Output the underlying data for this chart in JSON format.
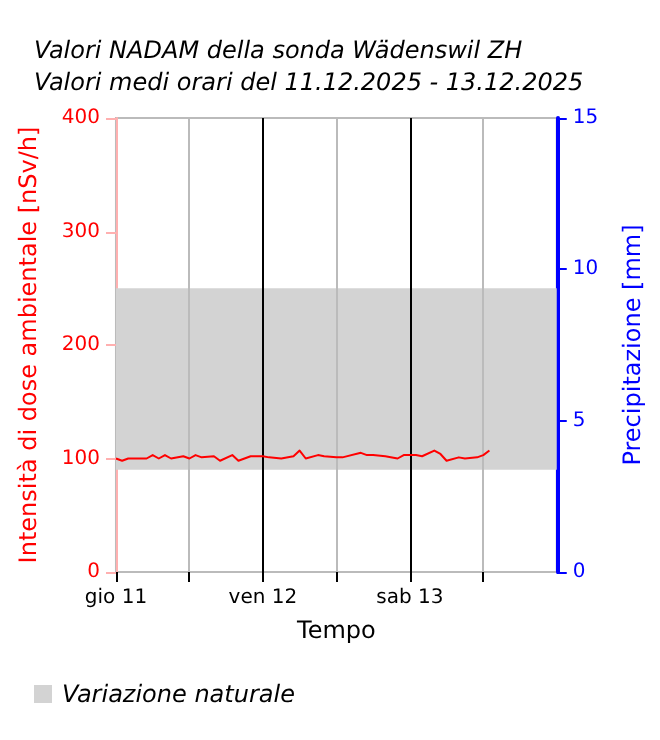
{
  "chart_data": {
    "type": "line",
    "title": "Valori NADAM della sonda Wädenswil ZH\nValori medi orari del 11.12.2025 - 13.12.2025",
    "xlabel": "Tempo",
    "ylabel": "Intensità di dose ambientale [nSv/h]",
    "y2label": "Precipitazione [mm]",
    "series": [
      {
        "color": "#ff0000",
        "x": [
          "2025-12-11T00:00",
          "2025-12-11T01:00",
          "2025-12-11T02:00",
          "2025-12-11T05:00",
          "2025-12-11T06:00",
          "2025-12-11T07:00",
          "2025-12-11T08:00",
          "2025-12-11T09:00",
          "2025-12-11T11:00",
          "2025-12-11T12:00",
          "2025-12-11T13:00",
          "2025-12-11T14:00",
          "2025-12-11T16:00",
          "2025-12-11T17:00",
          "2025-12-11T19:00",
          "2025-12-11T20:00",
          "2025-12-11T22:00",
          "2025-12-12T00:00",
          "2025-12-12T01:00",
          "2025-12-12T03:00",
          "2025-12-12T05:00",
          "2025-12-12T06:00",
          "2025-12-12T07:00",
          "2025-12-12T09:00",
          "2025-12-12T10:00",
          "2025-12-12T12:00",
          "2025-12-12T13:00",
          "2025-12-12T16:00",
          "2025-12-12T17:00",
          "2025-12-12T18:00",
          "2025-12-12T20:00",
          "2025-12-12T22:00",
          "2025-12-12T23:00",
          "2025-12-13T01:00",
          "2025-12-13T02:00",
          "2025-12-13T04:00",
          "2025-12-13T05:00",
          "2025-12-13T06:00",
          "2025-12-13T08:00",
          "2025-12-13T09:00",
          "2025-12-13T11:00",
          "2025-12-13T12:00",
          "2025-12-13T13:00"
        ],
        "values": [
          100,
          98,
          100,
          100,
          103,
          100,
          103,
          100,
          102,
          100,
          103,
          101,
          102,
          98,
          103,
          98,
          102,
          102,
          101,
          100,
          102,
          107,
          100,
          103,
          102,
          101,
          101,
          105,
          103,
          103,
          102,
          100,
          103,
          103,
          102,
          107,
          104,
          98,
          101,
          100,
          101,
          103,
          107
        ]
      }
    ],
    "xlim": [
      "2025-12-11T00:00",
      "2025-12-14T00:00"
    ],
    "xticks": [
      {
        "value": "2025-12-11T00:00",
        "label": "gio 11"
      },
      {
        "value": "2025-12-11T12:00",
        "label": null
      },
      {
        "value": "2025-12-12T00:00",
        "label": "ven 12"
      },
      {
        "value": "2025-12-12T12:00",
        "label": null
      },
      {
        "value": "2025-12-13T00:00",
        "label": "sab 13"
      },
      {
        "value": "2025-12-13T12:00",
        "label": null
      }
    ],
    "ylim": [
      0,
      400
    ],
    "yticks": [
      0,
      100,
      200,
      300,
      400
    ],
    "y2lim": [
      0,
      15
    ],
    "y2ticks": [
      0,
      5,
      10,
      15
    ],
    "bands": [
      {
        "axis": "y",
        "from": 90,
        "to": 250,
        "label": "Variazione naturale",
        "color": "#d3d3d3"
      }
    ],
    "grid": "x",
    "legend": "bottom left",
    "marker": "none",
    "line_style": "solid"
  }
}
